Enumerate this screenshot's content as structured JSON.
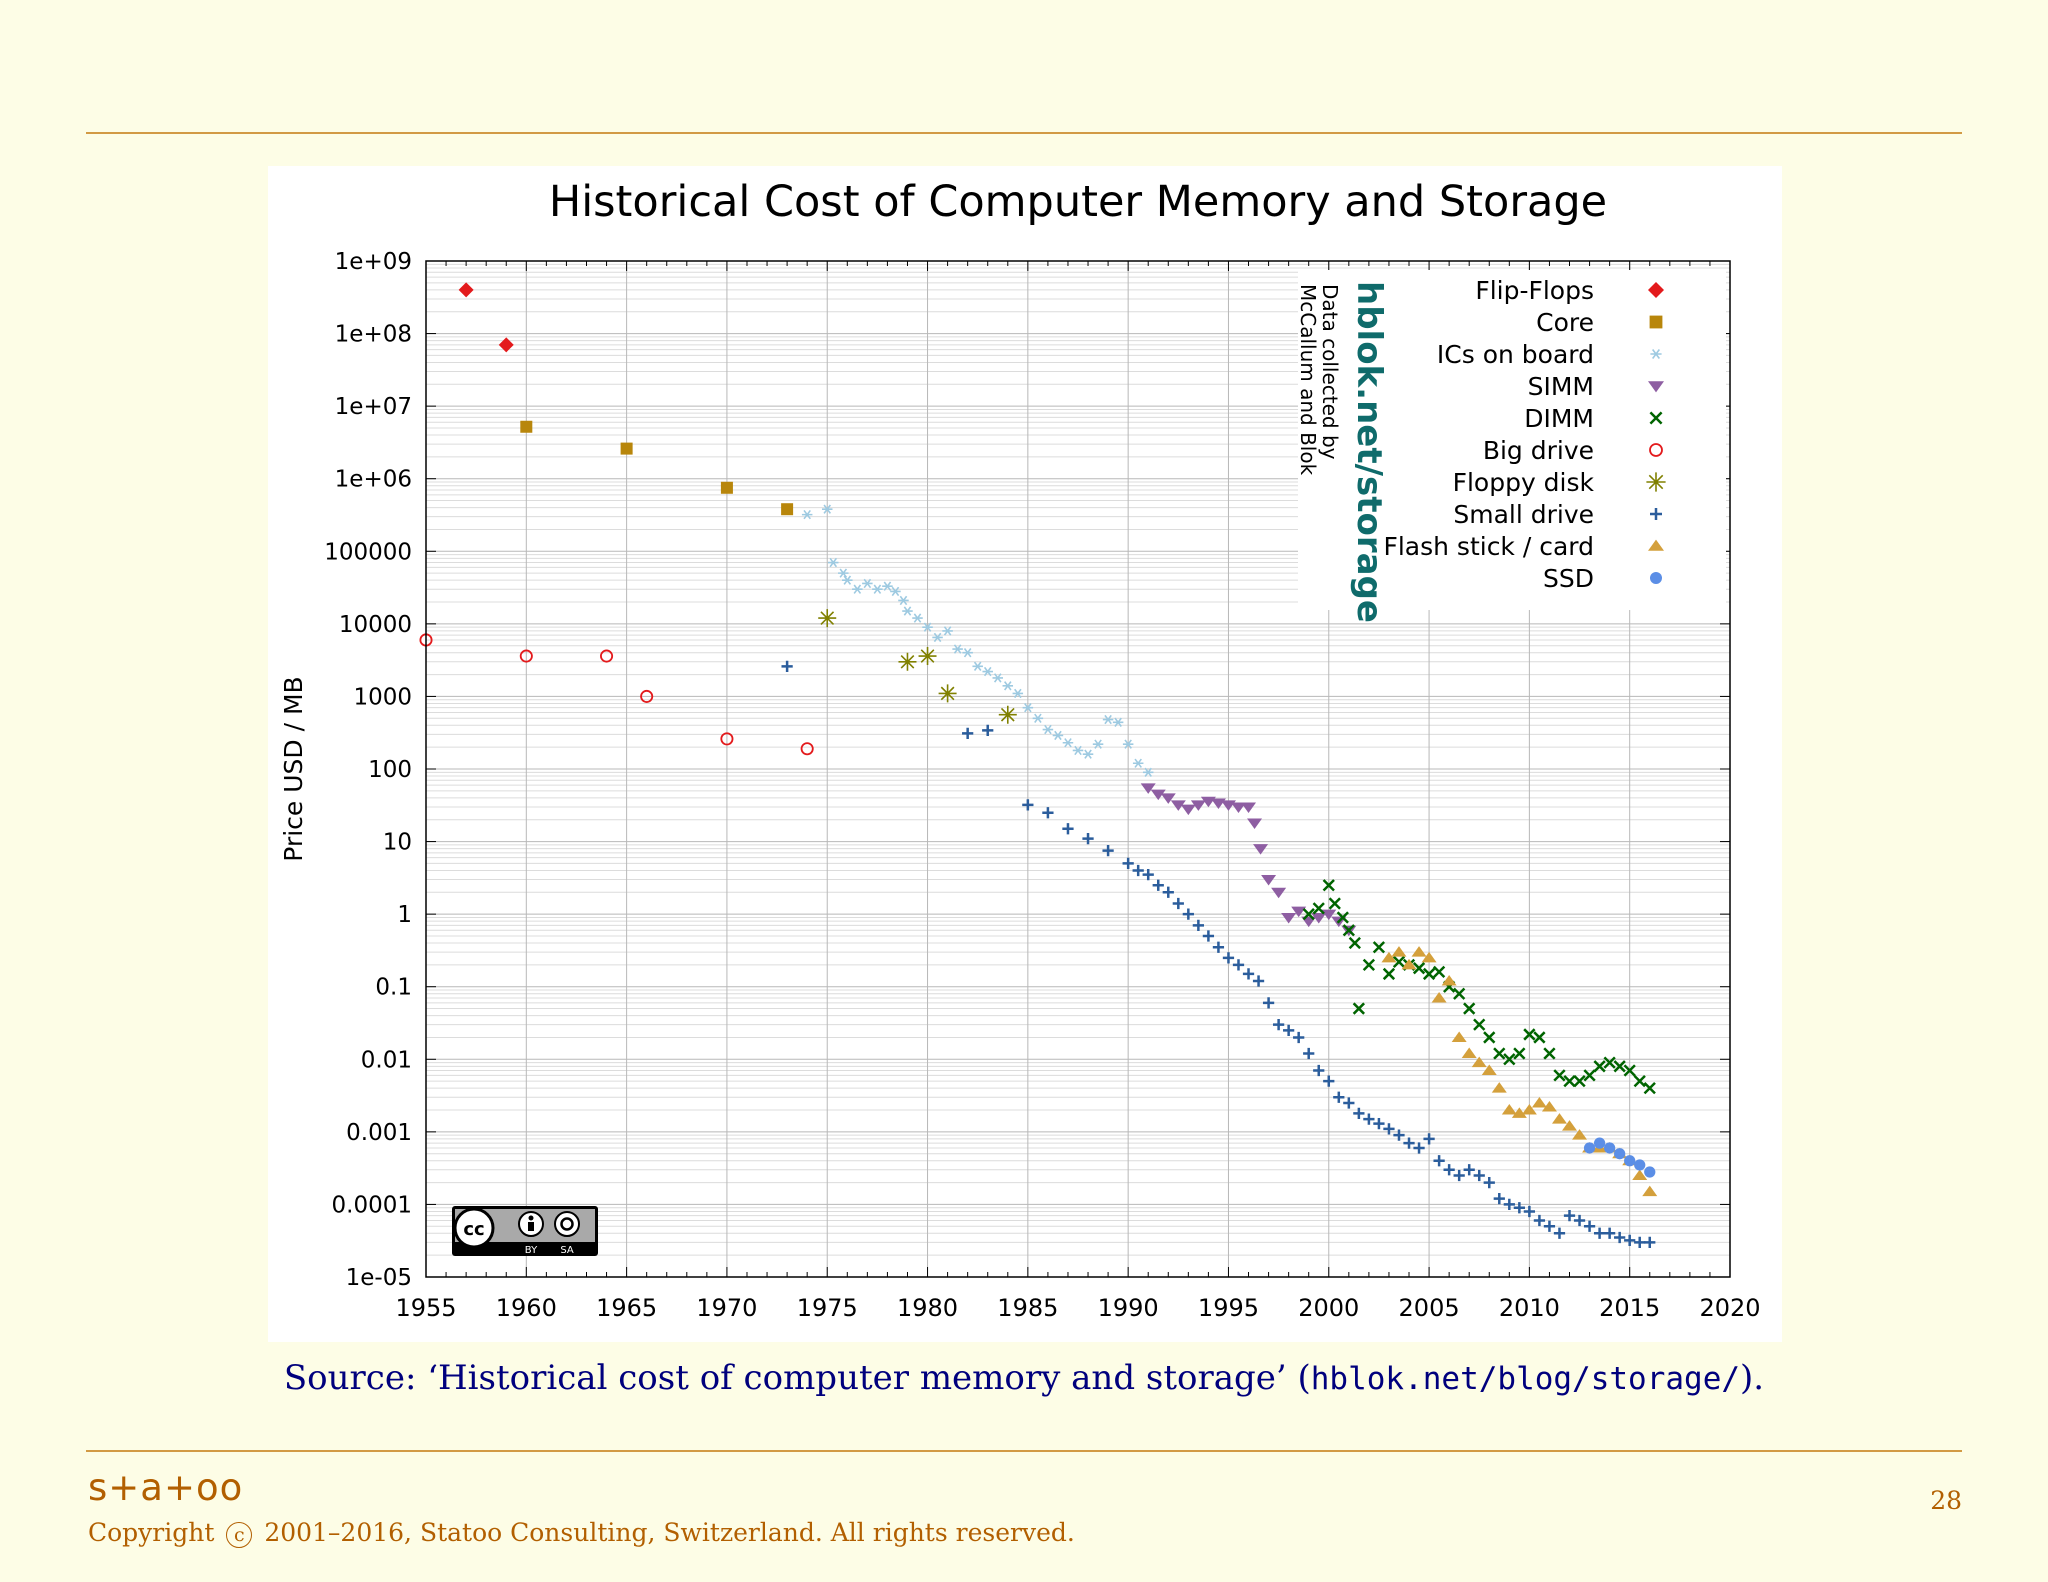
{
  "source": {
    "prefix": "Source: ‘Historical cost of computer memory and storage’ (",
    "url": "hblok.net/blog/storage/",
    "suffix": ")."
  },
  "footer": {
    "brand": "s+a+oo",
    "copyright_prefix": "Copyright",
    "copyright_symbol": "c",
    "copyright_suffix": "2001–2016, Statoo Consulting, Switzerland. All rights reserved.",
    "page_number": "28"
  },
  "badge": {
    "cc": "cc",
    "by": "BY",
    "sa": "SA"
  },
  "chart_data": {
    "type": "scatter",
    "title": "Historical Cost of Computer Memory and Storage",
    "xlabel": "",
    "ylabel": "Price USD / MB",
    "xlim": [
      1955,
      2020
    ],
    "ylim": [
      1e-05,
      1000000000.0
    ],
    "y_scale": "log",
    "grid": true,
    "legend_position": "top-right",
    "x_ticks": [
      "1955",
      "1960",
      "1965",
      "1970",
      "1975",
      "1980",
      "1985",
      "1990",
      "1995",
      "2000",
      "2005",
      "2010",
      "2015",
      "2020"
    ],
    "y_ticks": [
      "1e+09",
      "1e+08",
      "1e+07",
      "1e+06",
      "100000",
      "10000",
      "1000",
      "100",
      "10",
      "1",
      "0.1",
      "0.01",
      "0.001",
      "0.0001",
      "1e-05"
    ],
    "watermark": {
      "site": "hblok.net/storage",
      "line1": "Data collected by",
      "line2": "McCallum and Blok"
    },
    "series": [
      {
        "name": "Flip-Flops",
        "color": "#e31a1c",
        "marker": "diamond",
        "points": [
          [
            1957,
            400000000
          ],
          [
            1959,
            70000000
          ]
        ]
      },
      {
        "name": "Core",
        "color": "#b8860b",
        "marker": "square",
        "points": [
          [
            1960,
            5200000
          ],
          [
            1965,
            2600000
          ],
          [
            1970,
            750000
          ],
          [
            1973,
            380000
          ]
        ]
      },
      {
        "name": "ICs on board",
        "color": "#9ecae1",
        "marker": "asterisk",
        "points": [
          [
            1974,
            320000
          ],
          [
            1975,
            380000
          ],
          [
            1975.3,
            70000
          ],
          [
            1975.8,
            50000
          ],
          [
            1976,
            40000
          ],
          [
            1976.5,
            30000
          ],
          [
            1977,
            36000
          ],
          [
            1977.5,
            30000
          ],
          [
            1978,
            33000
          ],
          [
            1978.4,
            28000
          ],
          [
            1978.8,
            21000
          ],
          [
            1979,
            15000
          ],
          [
            1979.5,
            12000
          ],
          [
            1980,
            9000
          ],
          [
            1980.5,
            6500
          ],
          [
            1981,
            8000
          ],
          [
            1981.5,
            4500
          ],
          [
            1982,
            4000
          ],
          [
            1982.5,
            2600
          ],
          [
            1983,
            2200
          ],
          [
            1983.5,
            1800
          ],
          [
            1984,
            1400
          ],
          [
            1984.5,
            1100
          ],
          [
            1985,
            700
          ],
          [
            1985.5,
            500
          ],
          [
            1986,
            350
          ],
          [
            1986.5,
            290
          ],
          [
            1987,
            230
          ],
          [
            1987.5,
            180
          ],
          [
            1988,
            160
          ],
          [
            1988.5,
            220
          ],
          [
            1989,
            480
          ],
          [
            1989.5,
            440
          ],
          [
            1990,
            220
          ],
          [
            1990.5,
            120
          ],
          [
            1991,
            90
          ]
        ]
      },
      {
        "name": "SIMM",
        "color": "#8e5ea2",
        "marker": "triangle-down",
        "points": [
          [
            1991,
            55
          ],
          [
            1991.5,
            45
          ],
          [
            1992,
            40
          ],
          [
            1992.5,
            32
          ],
          [
            1993,
            28
          ],
          [
            1993.5,
            32
          ],
          [
            1994,
            36
          ],
          [
            1994.5,
            34
          ],
          [
            1995,
            32
          ],
          [
            1995.5,
            30
          ],
          [
            1996,
            30
          ],
          [
            1996.3,
            18
          ],
          [
            1996.6,
            8
          ],
          [
            1997,
            3
          ],
          [
            1997.5,
            2
          ],
          [
            1998,
            0.9
          ],
          [
            1998.5,
            1.1
          ],
          [
            1999,
            0.8
          ],
          [
            1999.5,
            0.9
          ],
          [
            2000,
            1.0
          ],
          [
            2000.5,
            0.8
          ],
          [
            2001,
            0.6
          ]
        ]
      },
      {
        "name": "DIMM",
        "color": "#006400",
        "marker": "x",
        "points": [
          [
            1999,
            1.0
          ],
          [
            1999.5,
            1.2
          ],
          [
            2000,
            2.5
          ],
          [
            2000.3,
            1.4
          ],
          [
            2000.7,
            0.9
          ],
          [
            2001,
            0.6
          ],
          [
            2001.3,
            0.4
          ],
          [
            2001.5,
            0.05
          ],
          [
            2002,
            0.2
          ],
          [
            2002.5,
            0.35
          ],
          [
            2003,
            0.15
          ],
          [
            2003.5,
            0.22
          ],
          [
            2004,
            0.2
          ],
          [
            2004.5,
            0.18
          ],
          [
            2005,
            0.15
          ],
          [
            2005.5,
            0.16
          ],
          [
            2006,
            0.1
          ],
          [
            2006.5,
            0.08
          ],
          [
            2007,
            0.05
          ],
          [
            2007.5,
            0.03
          ],
          [
            2008,
            0.02
          ],
          [
            2008.5,
            0.012
          ],
          [
            2009,
            0.01
          ],
          [
            2009.5,
            0.012
          ],
          [
            2010,
            0.022
          ],
          [
            2010.5,
            0.02
          ],
          [
            2011,
            0.012
          ],
          [
            2011.5,
            0.006
          ],
          [
            2012,
            0.005
          ],
          [
            2012.5,
            0.005
          ],
          [
            2013,
            0.006
          ],
          [
            2013.5,
            0.008
          ],
          [
            2014,
            0.009
          ],
          [
            2014.5,
            0.008
          ],
          [
            2015,
            0.007
          ],
          [
            2015.5,
            0.005
          ],
          [
            2016,
            0.004
          ]
        ]
      },
      {
        "name": "Big drive",
        "color": "#e31a1c",
        "marker": "circle-open",
        "points": [
          [
            1955,
            6000
          ],
          [
            1960,
            3600
          ],
          [
            1964,
            3600
          ],
          [
            1966,
            1000
          ],
          [
            1970,
            260
          ],
          [
            1974,
            190
          ]
        ]
      },
      {
        "name": "Floppy disk",
        "color": "#808000",
        "marker": "star",
        "points": [
          [
            1975,
            12000
          ],
          [
            1979,
            3000
          ],
          [
            1980,
            3600
          ],
          [
            1981,
            1100
          ],
          [
            1984,
            560
          ]
        ]
      },
      {
        "name": "Small drive",
        "color": "#2b5d9c",
        "marker": "plus",
        "points": [
          [
            1973,
            2600
          ],
          [
            1982,
            310
          ],
          [
            1983,
            340
          ],
          [
            1985,
            32
          ],
          [
            1986,
            25
          ],
          [
            1987,
            15
          ],
          [
            1988,
            11
          ],
          [
            1989,
            7.5
          ],
          [
            1990,
            5
          ],
          [
            1990.5,
            4
          ],
          [
            1991,
            3.5
          ],
          [
            1991.5,
            2.5
          ],
          [
            1992,
            2
          ],
          [
            1992.5,
            1.4
          ],
          [
            1993,
            1
          ],
          [
            1993.5,
            0.7
          ],
          [
            1994,
            0.5
          ],
          [
            1994.5,
            0.35
          ],
          [
            1995,
            0.25
          ],
          [
            1995.5,
            0.2
          ],
          [
            1996,
            0.15
          ],
          [
            1996.5,
            0.12
          ],
          [
            1997,
            0.06
          ],
          [
            1997.5,
            0.03
          ],
          [
            1998,
            0.025
          ],
          [
            1998.5,
            0.02
          ],
          [
            1999,
            0.012
          ],
          [
            1999.5,
            0.007
          ],
          [
            2000,
            0.005
          ],
          [
            2000.5,
            0.003
          ],
          [
            2001,
            0.0025
          ],
          [
            2001.5,
            0.0018
          ],
          [
            2002,
            0.0015
          ],
          [
            2002.5,
            0.0013
          ],
          [
            2003,
            0.0011
          ],
          [
            2003.5,
            0.0009
          ],
          [
            2004,
            0.0007
          ],
          [
            2004.5,
            0.0006
          ],
          [
            2005,
            0.0008
          ],
          [
            2005.5,
            0.0004
          ],
          [
            2006,
            0.0003
          ],
          [
            2006.5,
            0.00025
          ],
          [
            2007,
            0.0003
          ],
          [
            2007.5,
            0.00025
          ],
          [
            2008,
            0.0002
          ],
          [
            2008.5,
            0.00012
          ],
          [
            2009,
            0.0001
          ],
          [
            2009.5,
            9e-05
          ],
          [
            2010,
            8e-05
          ],
          [
            2010.5,
            6e-05
          ],
          [
            2011,
            5e-05
          ],
          [
            2011.5,
            4e-05
          ],
          [
            2012,
            7e-05
          ],
          [
            2012.5,
            6e-05
          ],
          [
            2013,
            5e-05
          ],
          [
            2013.5,
            4e-05
          ],
          [
            2014,
            4e-05
          ],
          [
            2014.5,
            3.5e-05
          ],
          [
            2015,
            3.2e-05
          ],
          [
            2015.5,
            3e-05
          ],
          [
            2016,
            3e-05
          ]
        ]
      },
      {
        "name": "Flash stick / card",
        "color": "#d4a03c",
        "marker": "triangle-up",
        "points": [
          [
            2003,
            0.25
          ],
          [
            2003.5,
            0.3
          ],
          [
            2004,
            0.2
          ],
          [
            2004.5,
            0.3
          ],
          [
            2005,
            0.25
          ],
          [
            2005.5,
            0.07
          ],
          [
            2006,
            0.12
          ],
          [
            2006.5,
            0.02
          ],
          [
            2007,
            0.012
          ],
          [
            2007.5,
            0.009
          ],
          [
            2008,
            0.007
          ],
          [
            2008.5,
            0.004
          ],
          [
            2009,
            0.002
          ],
          [
            2009.5,
            0.0018
          ],
          [
            2010,
            0.002
          ],
          [
            2010.5,
            0.0025
          ],
          [
            2011,
            0.0022
          ],
          [
            2011.5,
            0.0015
          ],
          [
            2012,
            0.0012
          ],
          [
            2012.5,
            0.0009
          ],
          [
            2013,
            0.0006
          ],
          [
            2013.5,
            0.0006
          ],
          [
            2014,
            0.0006
          ],
          [
            2014.5,
            0.0005
          ],
          [
            2015,
            0.0004
          ],
          [
            2015.5,
            0.00025
          ],
          [
            2016,
            0.00015
          ]
        ]
      },
      {
        "name": "SSD",
        "color": "#5b8ee6",
        "marker": "hexagon",
        "points": [
          [
            2013,
            0.0006
          ],
          [
            2013.5,
            0.0007
          ],
          [
            2014,
            0.0006
          ],
          [
            2014.5,
            0.0005
          ],
          [
            2015,
            0.0004
          ],
          [
            2015.5,
            0.00035
          ],
          [
            2016,
            0.00028
          ]
        ]
      }
    ]
  }
}
